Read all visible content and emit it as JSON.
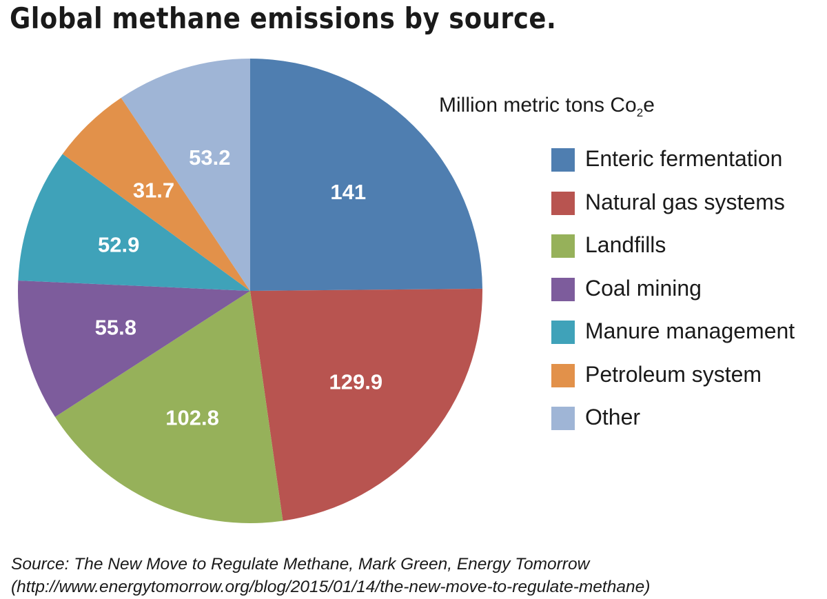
{
  "chart_data": {
    "type": "pie",
    "title": "Global methane emissions by source.",
    "unit_label": "Million metric tons Co",
    "unit_subscript": "2",
    "unit_suffix": "e",
    "legend_position": "right",
    "slices": [
      {
        "label": "Enteric fermentation",
        "value": 141,
        "value_label": "141",
        "color": "#4f7eb0"
      },
      {
        "label": "Natural gas systems",
        "value": 129.9,
        "value_label": "129.9",
        "color": "#b85450"
      },
      {
        "label": "Landfills",
        "value": 102.8,
        "value_label": "102.8",
        "color": "#96b15a"
      },
      {
        "label": "Coal mining",
        "value": 55.8,
        "value_label": "55.8",
        "color": "#7d5c9c"
      },
      {
        "label": "Manure management",
        "value": 52.9,
        "value_label": "52.9",
        "color": "#3fa2b9"
      },
      {
        "label": "Petroleum system",
        "value": 31.7,
        "value_label": "31.7",
        "color": "#e2914a"
      },
      {
        "label": "Other",
        "value": 53.2,
        "value_label": "53.2",
        "color": "#9fb5d6"
      }
    ]
  },
  "source": {
    "line1": "Source: The New Move to Regulate Methane, Mark Green, Energy Tomorrow",
    "line2": "(http://www.energytomorrow.org/blog/2015/01/14/the-new-move-to-regulate-methane)"
  }
}
